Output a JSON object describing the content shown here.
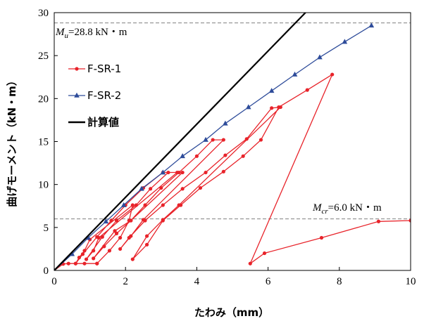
{
  "chart_data": {
    "type": "line",
    "xlabel": "たわみ（mm）",
    "ylabel": "曲げモーメント（kN・m）",
    "xlim": [
      0,
      10
    ],
    "ylim": [
      0,
      30
    ],
    "xticks": [
      "0",
      "2",
      "4",
      "6",
      "8",
      "10"
    ],
    "yticks": [
      "0",
      "5",
      "10",
      "15",
      "20",
      "25",
      "30"
    ],
    "grid": false,
    "legend_position": "left",
    "colors": {
      "fsr1": "#e8232a",
      "fsr2": "#2e4c9a",
      "calc": "#000000",
      "ref": "#808080"
    },
    "series": [
      {
        "name": "F-SR-1",
        "marker": "circle",
        "points": [
          [
            0,
            0
          ],
          [
            0.25,
            0.75
          ],
          [
            0.4,
            0.8
          ],
          [
            0.6,
            0.8
          ],
          [
            0.85,
            0.8
          ],
          [
            1.2,
            0.8
          ],
          [
            1.2,
            0.8
          ],
          [
            1.55,
            2.3
          ],
          [
            1.85,
            3.8
          ],
          [
            2.1,
            5.8
          ],
          [
            2.2,
            7.6
          ],
          [
            1.0,
            3.6
          ],
          [
            0.85,
            2.3
          ],
          [
            0.7,
            1.5
          ],
          [
            0.6,
            0.8
          ],
          [
            0.8,
            1.9
          ],
          [
            1.2,
            3.9
          ],
          [
            1.6,
            5.8
          ],
          [
            2.0,
            7.6
          ],
          [
            2.5,
            9.6
          ],
          [
            3.05,
            11.4
          ],
          [
            3.45,
            11.4
          ],
          [
            1.25,
            3.8
          ],
          [
            1.1,
            2.3
          ],
          [
            0.9,
            1.3
          ],
          [
            1.35,
            3.9
          ],
          [
            1.75,
            5.8
          ],
          [
            2.3,
            7.6
          ],
          [
            2.7,
            9.5
          ],
          [
            3.2,
            11.4
          ],
          [
            3.6,
            11.4
          ],
          [
            2.15,
            5.8
          ],
          [
            1.75,
            4.3
          ],
          [
            1.4,
            2.8
          ],
          [
            1.1,
            1.4
          ],
          [
            1.7,
            4.6
          ],
          [
            2.15,
            5.8
          ],
          [
            2.55,
            7.6
          ],
          [
            3.0,
            9.6
          ],
          [
            3.5,
            11.4
          ],
          [
            4.0,
            13.3
          ],
          [
            4.45,
            15.2
          ],
          [
            4.75,
            15.2
          ],
          [
            2.5,
            5.9
          ],
          [
            2.15,
            4.0
          ],
          [
            1.85,
            2.5
          ],
          [
            2.1,
            3.8
          ],
          [
            2.55,
            5.8
          ],
          [
            3.05,
            7.6
          ],
          [
            3.6,
            9.5
          ],
          [
            4.25,
            11.4
          ],
          [
            4.8,
            13.4
          ],
          [
            5.4,
            15.3
          ],
          [
            6.1,
            18.9
          ],
          [
            6.35,
            19.0
          ],
          [
            3.5,
            7.6
          ],
          [
            3.05,
            5.9
          ],
          [
            2.6,
            4.0
          ],
          [
            2.2,
            1.3
          ],
          [
            2.6,
            3.0
          ],
          [
            3.05,
            5.8
          ],
          [
            3.55,
            7.6
          ],
          [
            4.1,
            9.6
          ],
          [
            4.75,
            11.5
          ],
          [
            5.3,
            13.3
          ],
          [
            5.8,
            15.2
          ],
          [
            6.3,
            19.0
          ],
          [
            7.1,
            21.0
          ],
          [
            7.8,
            22.8
          ],
          [
            5.5,
            0.8
          ],
          [
            5.9,
            2.0
          ],
          [
            7.5,
            3.8
          ],
          [
            9.1,
            5.7
          ],
          [
            10.0,
            5.8
          ]
        ]
      },
      {
        "name": "F-SR-2",
        "marker": "triangle",
        "points": [
          [
            0,
            0
          ],
          [
            0.5,
            1.9
          ],
          [
            0.95,
            3.8
          ],
          [
            1.45,
            5.7
          ],
          [
            1.95,
            7.6
          ],
          [
            2.45,
            9.5
          ],
          [
            3.05,
            11.4
          ],
          [
            3.6,
            13.3
          ],
          [
            4.25,
            15.2
          ],
          [
            4.8,
            17.1
          ],
          [
            5.45,
            19.0
          ],
          [
            6.1,
            20.9
          ],
          [
            6.75,
            22.8
          ],
          [
            7.45,
            24.8
          ],
          [
            8.15,
            26.6
          ],
          [
            8.9,
            28.5
          ]
        ]
      },
      {
        "name": "計算値",
        "marker": "none",
        "points": [
          [
            0,
            0
          ],
          [
            7.05,
            30
          ]
        ]
      }
    ],
    "reference_lines": [
      {
        "y": 28.8,
        "label_symbol": "M",
        "label_subscript": "u",
        "label_value": "=28.8 kN・m"
      },
      {
        "y": 6.0,
        "label_symbol": "M",
        "label_subscript": "cr",
        "label_value": "=6.0 kN・m"
      }
    ]
  }
}
